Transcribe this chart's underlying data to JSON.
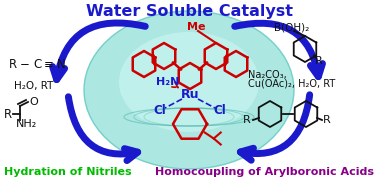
{
  "title": "Water Soluble Catalyst",
  "title_color": "#1a1acc",
  "title_fontsize": 11.5,
  "bg_color": "#ffffff",
  "bottom_left_label": "Hydration of Nitriles",
  "bottom_left_color": "#00bb00",
  "bottom_right_label": "Homocoupling of Arylboronic Acids",
  "bottom_right_color": "#880088",
  "water_teal": "#90e0d8",
  "water_light": "#c8f5f0",
  "arrow_color": "#1a1acc",
  "chem_color": "#cc0000",
  "ru_color": "#1a1acc",
  "cl_color": "#1a1acc",
  "nh2_color": "#1a1acc",
  "me_color": "#cc0000",
  "black": "#111111"
}
